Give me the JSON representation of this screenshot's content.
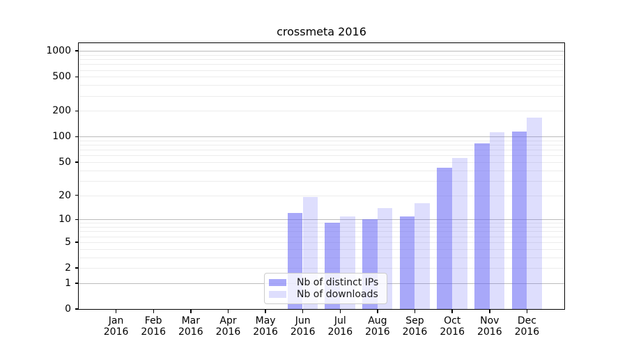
{
  "title": "crossmeta 2016",
  "colors": {
    "bar_distinct_ips": "rgba(105,105,245,0.58)",
    "bar_downloads": "rgba(105,105,245,0.22)",
    "grid_major": "#bbbbbb",
    "grid_minor": "#ececec",
    "axis": "#000000",
    "legend_border": "#cccccc"
  },
  "chart_data": {
    "type": "bar",
    "title": "crossmeta 2016",
    "categories": [
      {
        "month": "Jan",
        "year": "2016"
      },
      {
        "month": "Feb",
        "year": "2016"
      },
      {
        "month": "Mar",
        "year": "2016"
      },
      {
        "month": "Apr",
        "year": "2016"
      },
      {
        "month": "May",
        "year": "2016"
      },
      {
        "month": "Jun",
        "year": "2016"
      },
      {
        "month": "Jul",
        "year": "2016"
      },
      {
        "month": "Aug",
        "year": "2016"
      },
      {
        "month": "Sep",
        "year": "2016"
      },
      {
        "month": "Oct",
        "year": "2016"
      },
      {
        "month": "Nov",
        "year": "2016"
      },
      {
        "month": "Dec",
        "year": "2016"
      }
    ],
    "series": [
      {
        "name": "Nb of distinct IPs",
        "color": "rgba(105,105,245,0.58)",
        "values": [
          0,
          0,
          0,
          0,
          0,
          12,
          9,
          10,
          11,
          43,
          84,
          115
        ]
      },
      {
        "name": "Nb of downloads",
        "color": "rgba(105,105,245,0.22)",
        "values": [
          0,
          0,
          0,
          0,
          0,
          19,
          11,
          14,
          16,
          56,
          112,
          167
        ]
      }
    ],
    "yscale": "log10(1+v)",
    "yticks": [
      0,
      1,
      2,
      5,
      10,
      20,
      50,
      100,
      200,
      500,
      1000
    ],
    "ylim": [
      0,
      1240
    ],
    "grid": "both",
    "legend_position": "inside lower center-left",
    "xlabel": "",
    "ylabel": ""
  }
}
